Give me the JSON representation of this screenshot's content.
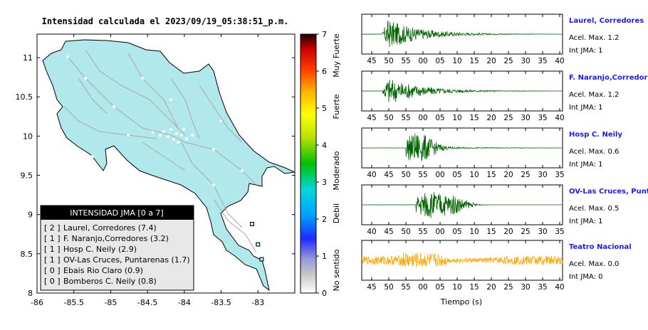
{
  "map": {
    "title": "Intensidad calculada el 2023/09/19_05:38:51_p.m.",
    "xticks": [
      "-86",
      "-85.5",
      "-85",
      "-84.5",
      "-84",
      "-83.5",
      "-83"
    ],
    "yticks": [
      "11",
      "10.5",
      "10",
      "9.5",
      "9",
      "8.5",
      "8"
    ],
    "colors": {
      "land": "#b0e8ec",
      "border": "#000000"
    }
  },
  "legend": {
    "header": "INTENSIDAD JMA [0 a 7]",
    "items": [
      {
        "level": "[ 2 ]",
        "name": "Laurel, Corredores (7.4)"
      },
      {
        "level": "[ 1 ]",
        "name": "F. Naranjo,Corredores (3.2)"
      },
      {
        "level": "[ 1 ]",
        "name": "Hosp C. Neily (2.9)"
      },
      {
        "level": "[ 1 ]",
        "name": "OV-Las Cruces, Puntarenas (1.7)"
      },
      {
        "level": "[ 0 ]",
        "name": "Ebais Rio Claro (0.9)"
      },
      {
        "level": "[ 0 ]",
        "name": "Bomberos C. Neily (0.8)"
      }
    ]
  },
  "colorbar": {
    "ticks": [
      "7",
      "6",
      "5",
      "4",
      "3",
      "2",
      "1",
      "0"
    ],
    "labels": [
      "Muy Fuerte",
      "Fuerte",
      "Moderado",
      "Debil",
      "No sentido"
    ]
  },
  "waves": {
    "xlabel": "Tiempo (s)",
    "panels": [
      {
        "name": "Laurel, Corredores",
        "acel": "Acel. Max. 1.2",
        "jma": "Int JMA: 1",
        "ticks": [
          "45",
          "50",
          "55",
          "00",
          "05",
          "10",
          "15",
          "20",
          "25",
          "30",
          "35",
          "40"
        ],
        "color": "#006400"
      },
      {
        "name": "F. Naranjo,Corredores",
        "acel": "Acel. Max. 1.2",
        "jma": "Int JMA: 1",
        "ticks": [
          "45",
          "50",
          "55",
          "00",
          "05",
          "10",
          "15",
          "20",
          "25",
          "30",
          "35",
          "40"
        ],
        "color": "#006400"
      },
      {
        "name": "Hosp C. Neily",
        "acel": "Acel. Max. 0.6",
        "jma": "Int JMA: 1",
        "ticks": [
          "40",
          "45",
          "50",
          "55",
          "00",
          "05",
          "10",
          "15",
          "20",
          "25",
          "30",
          "35"
        ],
        "color": "#006400"
      },
      {
        "name": "OV-Las Cruces, Puntar",
        "acel": "Acel. Max. 0.5",
        "jma": "Int JMA: 1",
        "ticks": [
          "40",
          "45",
          "50",
          "55",
          "00",
          "05",
          "10",
          "15",
          "20",
          "25",
          "30",
          "35"
        ],
        "color": "#006400"
      },
      {
        "name": "Teatro Nacional",
        "acel": "Acel. Max. 0.0",
        "jma": "Int JMA: 0",
        "ticks": [
          "45",
          "50",
          "55",
          "00",
          "05",
          "10",
          "15",
          "20",
          "25",
          "30",
          "35",
          "40"
        ],
        "color": "#ffa500"
      }
    ]
  },
  "chart_data": [
    {
      "type": "scatter",
      "title": "Intensidad calculada el 2023/09/19_05:38:51_p.m.",
      "xlim": [
        -86,
        -82.5
      ],
      "ylim": [
        8,
        11.3
      ],
      "x_ticks": [
        -86,
        -85.5,
        -85,
        -84.5,
        -84,
        -83.5,
        -83
      ],
      "y_ticks": [
        8,
        8.5,
        9,
        9.5,
        10,
        10.5,
        11
      ],
      "legend_placement": "bottom-left",
      "series": [
        {
          "values": [
            [
              -83.08,
              8.88
            ],
            [
              -83.0,
              8.62
            ],
            [
              -82.95,
              8.43
            ]
          ]
        }
      ]
    },
    {
      "type": "line",
      "xlabel": "Tiempo (s)",
      "panel_count": 5,
      "series": [
        {
          "name": "Laurel, Corredores",
          "values": [
            1.2
          ]
        },
        {
          "name": "F. Naranjo,Corredores",
          "values": [
            1.2
          ]
        },
        {
          "name": "Hosp C. Neily",
          "values": [
            0.6
          ]
        },
        {
          "name": "OV-Las Cruces, Puntar",
          "values": [
            0.5
          ]
        },
        {
          "name": "Teatro Nacional",
          "values": [
            0.0
          ]
        }
      ]
    }
  ]
}
